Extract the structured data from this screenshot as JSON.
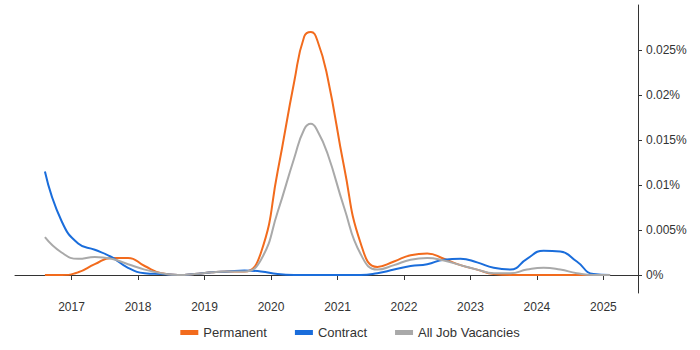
{
  "chart_data": {
    "type": "line",
    "x": [
      2016.6,
      2016.85,
      2017.1,
      2017.35,
      2017.6,
      2017.85,
      2018.1,
      2018.35,
      2018.6,
      2018.85,
      2019.1,
      2019.35,
      2019.6,
      2019.85,
      2020.1,
      2020.35,
      2020.5,
      2020.6,
      2020.7,
      2020.85,
      2021.1,
      2021.35,
      2021.6,
      2021.85,
      2022.1,
      2022.35,
      2022.6,
      2022.85,
      2023.1,
      2023.35,
      2023.6,
      2023.85,
      2024.1,
      2024.35,
      2024.6,
      2024.85,
      2025.1
    ],
    "series": [
      {
        "name": "Permanent",
        "color": "#f26b1d",
        "values": [
          0,
          0,
          0.0003,
          0.0012,
          0.0019,
          0.0019,
          0.001,
          0.0002,
          0,
          0.0001,
          0.0003,
          0.0004,
          0.0004,
          0.0025,
          0.0115,
          0.0215,
          0.0265,
          0.027,
          0.026,
          0.022,
          0.012,
          0.0035,
          0.0009,
          0.0015,
          0.0022,
          0.0024,
          0.0018,
          0.0011,
          0.0006,
          0.0001,
          0,
          0,
          0,
          0,
          0,
          0,
          0
        ]
      },
      {
        "name": "Contract",
        "color": "#1a6ddb",
        "values": [
          0.0115,
          0.006,
          0.0035,
          0.0028,
          0.002,
          0.0008,
          0.0002,
          0.0001,
          0,
          0.0001,
          0.0003,
          0.0004,
          0.0005,
          0.0004,
          0.0001,
          0,
          0,
          0,
          0,
          0,
          0,
          0,
          0.0002,
          0.0006,
          0.001,
          0.0012,
          0.0017,
          0.0018,
          0.0014,
          0.0008,
          0.0006,
          0.0018,
          0.0027,
          0.0026,
          0.0015,
          0.0001,
          0
        ]
      },
      {
        "name": "All Job Vacancies",
        "color": "#a9a9a9",
        "values": [
          0.0042,
          0.0025,
          0.0018,
          0.002,
          0.0018,
          0.0012,
          0.0006,
          0.0002,
          0,
          0.0001,
          0.0003,
          0.0004,
          0.0004,
          0.0017,
          0.007,
          0.013,
          0.0162,
          0.0168,
          0.016,
          0.0135,
          0.0075,
          0.0023,
          0.0006,
          0.0011,
          0.0017,
          0.0019,
          0.0016,
          0.0011,
          0.0006,
          0.0002,
          0.0002,
          0.0006,
          0.0008,
          0.0006,
          0.0002,
          0,
          0
        ]
      }
    ],
    "xlim": [
      2016.15,
      2025.52
    ],
    "xticks": [
      2017,
      2018,
      2019,
      2020,
      2021,
      2022,
      2023,
      2024,
      2025
    ],
    "ylim": [
      -0.002,
      0.03
    ],
    "yticks": [
      {
        "value": 0,
        "label": "0%"
      },
      {
        "value": 0.005,
        "label": "0.005%"
      },
      {
        "value": 0.01,
        "label": "0.01%"
      },
      {
        "value": 0.015,
        "label": "0.015%"
      },
      {
        "value": 0.02,
        "label": "0.02%"
      },
      {
        "value": 0.025,
        "label": "0.025%"
      }
    ],
    "grid": false,
    "legend": "bottom",
    "marker": "none"
  }
}
